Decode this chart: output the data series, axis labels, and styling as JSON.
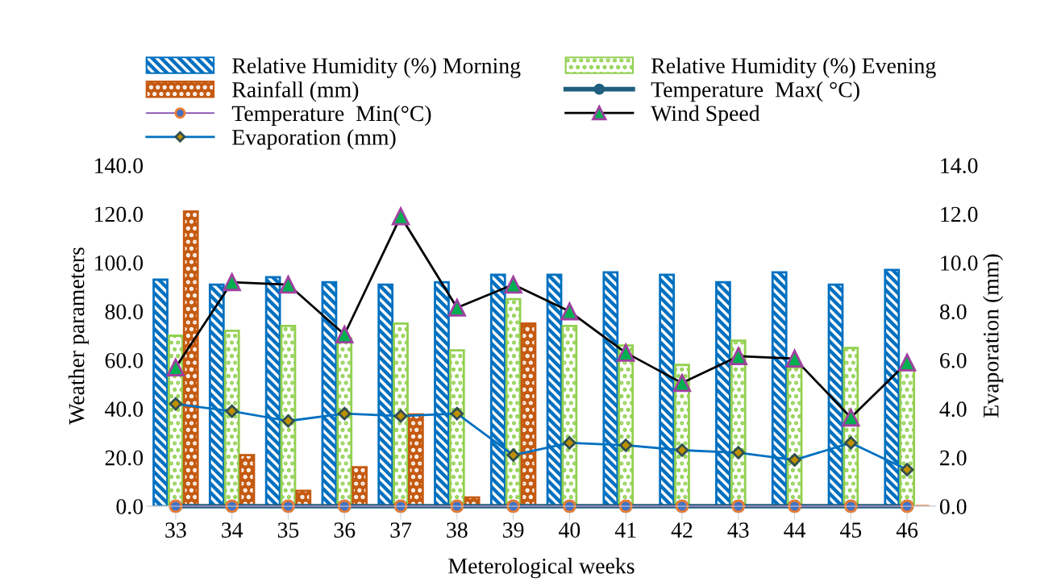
{
  "chart_data": {
    "type": "bar",
    "xlabel": "Meterological weeks",
    "ylabel": "Weather parameters",
    "y2label": "Evaporation (mm)",
    "categories": [
      "33",
      "34",
      "35",
      "36",
      "37",
      "38",
      "39",
      "40",
      "41",
      "42",
      "43",
      "44",
      "45",
      "46"
    ],
    "series": [
      {
        "name": "Relative Humidity (%) Morning",
        "color": "#0070c0",
        "values": [
          93,
          91,
          94,
          92,
          91,
          92,
          95,
          95,
          96,
          95,
          92,
          96,
          91,
          97
        ]
      },
      {
        "name": "Relative Humidity (%) Evening",
        "color": "#92d050",
        "values": [
          70,
          72,
          74,
          69,
          75,
          64,
          85,
          74,
          66,
          58,
          68,
          57,
          65,
          56
        ]
      },
      {
        "name": "Rainfall (mm)",
        "color": "#c55a11",
        "values": [
          121,
          21,
          6.3,
          16,
          37.7,
          3.6,
          75,
          0,
          0,
          0,
          0,
          0,
          0,
          0
        ]
      },
      {
        "name": "Temperature  Max( °C)",
        "type": "line",
        "color": "#1f5f7f",
        "marker": "circle",
        "values": [
          0,
          0,
          0,
          0,
          0,
          0,
          0,
          0,
          0,
          0,
          0,
          0,
          0,
          0
        ]
      },
      {
        "name": "Temperature  Min(°C)",
        "type": "line",
        "color": "#7030a0",
        "marker": "circle",
        "values": [
          0,
          0,
          0,
          0,
          0,
          0,
          0,
          0,
          0,
          0,
          0,
          0,
          0,
          0
        ]
      },
      {
        "name": "Wind Speed",
        "type": "line",
        "color": "#000000",
        "marker": "triangle",
        "values": [
          57,
          92,
          91,
          70.5,
          119,
          81.5,
          91,
          80,
          63,
          50.6,
          61.6,
          60.6,
          36.4,
          59
        ]
      },
      {
        "name": "Evaporation (mm)",
        "type": "line",
        "color": "#0070c0",
        "marker": "diamond",
        "axis": "y2",
        "values": [
          4.2,
          3.9,
          3.5,
          3.8,
          3.7,
          3.8,
          2.1,
          2.6,
          2.5,
          2.3,
          2.2,
          1.9,
          2.6,
          1.5
        ]
      }
    ],
    "ylim": [
      0,
      140
    ],
    "yticks": [
      {
        "value": 0,
        "label": "0.0"
      },
      {
        "value": 20,
        "label": "20.0"
      },
      {
        "value": 40,
        "label": "40.0"
      },
      {
        "value": 60,
        "label": "60.0"
      },
      {
        "value": 80,
        "label": "80.0"
      },
      {
        "value": 100,
        "label": "100.0"
      },
      {
        "value": 120,
        "label": "120.0"
      },
      {
        "value": 140,
        "label": "140.0"
      }
    ],
    "y2lim": [
      0,
      14
    ],
    "y2ticks": [
      {
        "value": 0,
        "label": "0.0"
      },
      {
        "value": 2,
        "label": "2.0"
      },
      {
        "value": 4,
        "label": "4.0"
      },
      {
        "value": 6,
        "label": "6.0"
      },
      {
        "value": 8,
        "label": "8.0"
      },
      {
        "value": 10,
        "label": "10.0"
      },
      {
        "value": 12,
        "label": "12.0"
      },
      {
        "value": 14,
        "label": "14.0"
      }
    ],
    "legend": "top",
    "grid": false
  }
}
